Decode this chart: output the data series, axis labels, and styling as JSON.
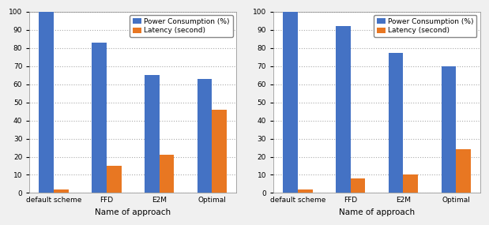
{
  "chart1": {
    "categories": [
      "default scheme",
      "FFD",
      "E2M",
      "Optimal"
    ],
    "power": [
      100,
      83,
      65,
      63
    ],
    "latency": [
      2,
      15,
      21,
      46
    ],
    "xlabel": "Name of approach",
    "ylim": [
      0,
      100
    ],
    "yticks": [
      0,
      10,
      20,
      30,
      40,
      50,
      60,
      70,
      80,
      90,
      100
    ]
  },
  "chart2": {
    "categories": [
      "default scheme",
      "FFD",
      "E2M",
      "Optimal"
    ],
    "power": [
      100,
      92,
      77,
      70
    ],
    "latency": [
      2,
      8,
      10,
      24
    ],
    "xlabel": "Name of approach",
    "ylim": [
      0,
      100
    ],
    "yticks": [
      0,
      10,
      20,
      30,
      40,
      50,
      60,
      70,
      80,
      90,
      100
    ]
  },
  "legend_labels": [
    "Power Consumption (%)",
    "Latency (second)"
  ],
  "bar_color_blue": "#4472C4",
  "bar_color_orange": "#E87722",
  "bar_width": 0.28,
  "grid_color": "#AAAAAA",
  "tick_fontsize": 6.5,
  "label_fontsize": 7.5,
  "legend_fontsize": 6.5,
  "fig_facecolor": "#F0F0F0",
  "ax_facecolor": "#FFFFFF"
}
